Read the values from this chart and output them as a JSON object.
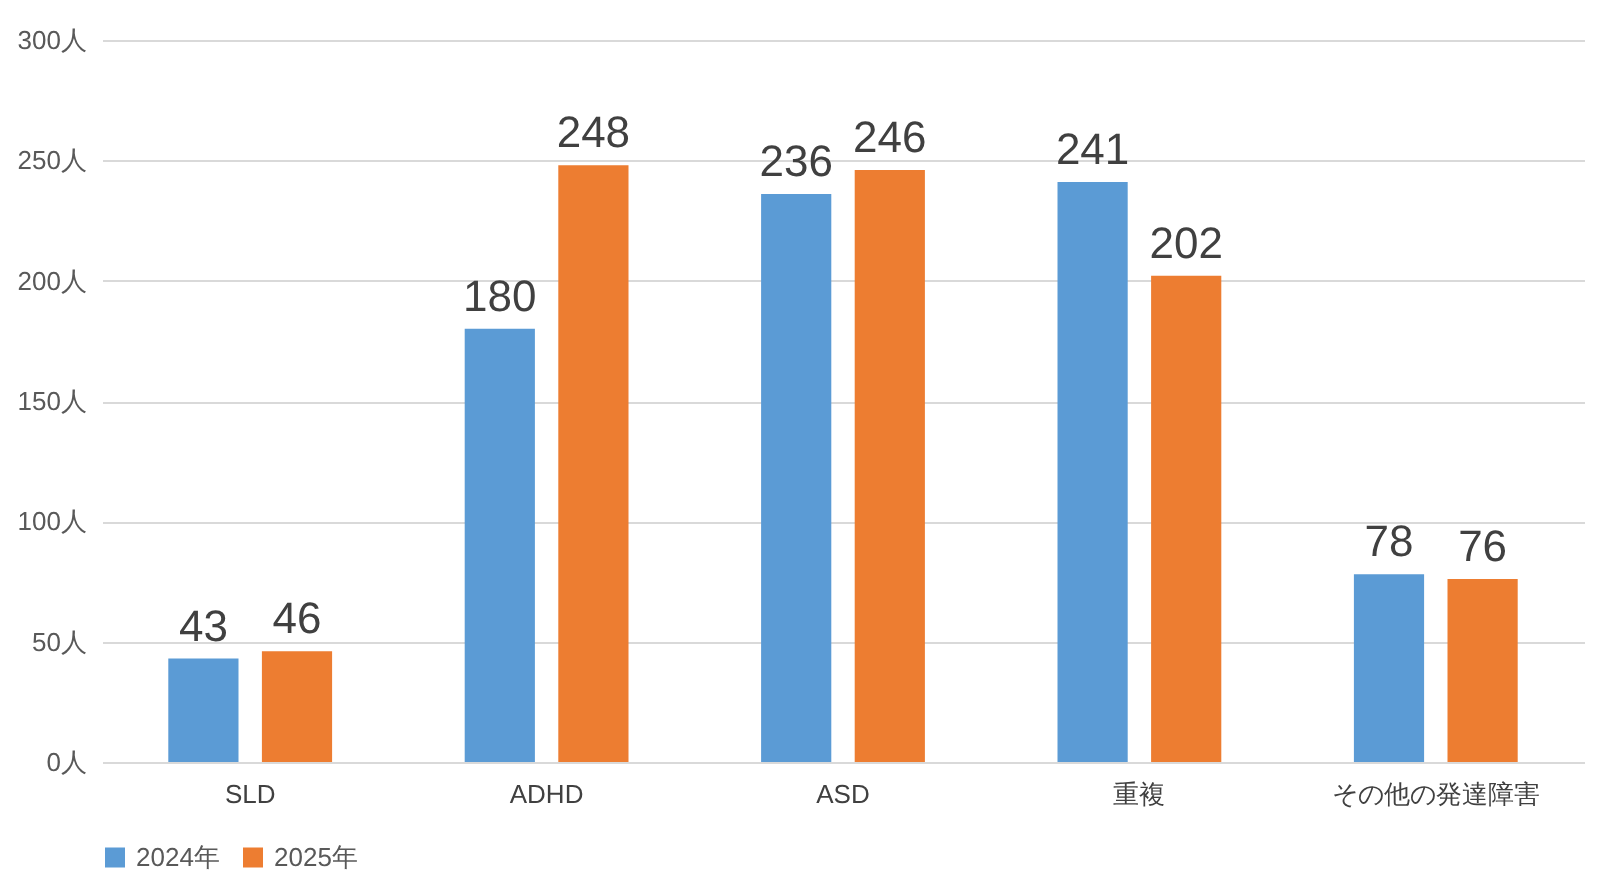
{
  "chart_data": {
    "type": "bar",
    "categories": [
      "SLD",
      "ADHD",
      "ASD",
      "重複",
      "その他の発達障害"
    ],
    "series": [
      {
        "name": "2024年",
        "color": "#5b9bd5",
        "values": [
          43,
          180,
          236,
          241,
          78
        ]
      },
      {
        "name": "2025年",
        "color": "#ed7d31",
        "values": [
          46,
          248,
          246,
          202,
          76
        ]
      }
    ],
    "ylim": [
      0,
      300
    ],
    "yticks": [
      {
        "value": 0,
        "label": "0人"
      },
      {
        "value": 50,
        "label": "50人"
      },
      {
        "value": 100,
        "label": "100人"
      },
      {
        "value": 150,
        "label": "150人"
      },
      {
        "value": 200,
        "label": "200人"
      },
      {
        "value": 250,
        "label": "250人"
      },
      {
        "value": 300,
        "label": "300人"
      }
    ],
    "grid": "y",
    "legend": "bottom",
    "data_labels": true
  }
}
